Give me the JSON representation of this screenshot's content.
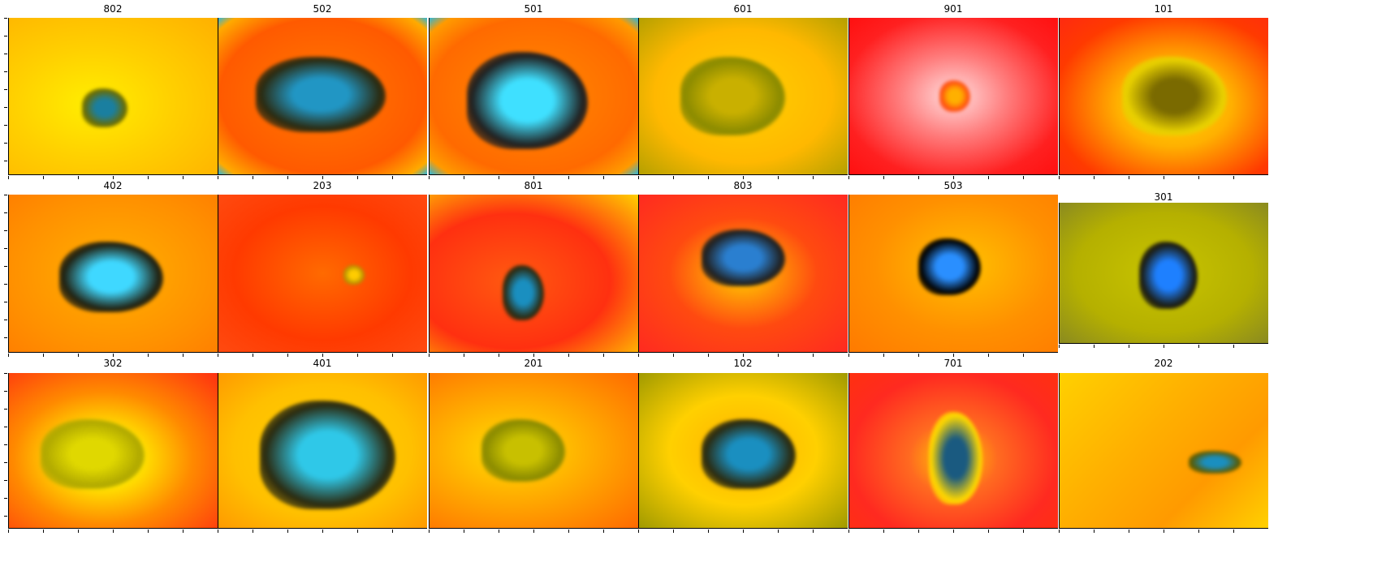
{
  "figure": {
    "panels": [
      {
        "title": "802",
        "bg": "radial-gradient(ellipse at 40% 55%, #ffee00 0%, #ffd000 45%, #ffb000 100%)",
        "lesion": {
          "color": "#6b6b00",
          "accent": "#1a7fa0"
        }
      },
      {
        "title": "502",
        "bg": "radial-gradient(ellipse at 50% 50%, #ff7a00 0%, #ff5a00 70%, #ffaa00 92%, #2fb6d8 100%)",
        "lesion": {
          "color": "#2a2a10",
          "accent": "#2196c4"
        }
      },
      {
        "title": "501",
        "bg": "radial-gradient(ellipse at 50% 50%, #ff8a00 0%, #ff6a00 70%, #ff9a00 90%, #2fb6d8 100%)",
        "lesion": {
          "color": "#202020",
          "accent": "#3fe0ff"
        }
      },
      {
        "title": "601",
        "bg": "radial-gradient(ellipse at 50% 50%, #ffd000 0%, #ffb800 60%, #b5a000 100%)",
        "lesion": {
          "color": "#8a8a00",
          "accent": "#c9b000"
        }
      },
      {
        "title": "901",
        "bg": "radial-gradient(ellipse at 50% 50%, #ffdede 0%, #ff8080 35%, #ff2020 75%, #ff1010 100%)",
        "lesion": {
          "color": "#ff4a10",
          "accent": "#ffb000"
        }
      },
      {
        "title": "101",
        "bg": "radial-gradient(ellipse at 55% 55%, #ffe000 0%, #ffb000 35%, #ff3a00 75%, #ff2a10 100%)",
        "lesion": {
          "color": "#e8d000",
          "accent": "#7a6a00"
        }
      },
      {
        "title": "402",
        "bg": "radial-gradient(ellipse at 50% 50%, #ffb000 0%, #ff9000 70%, #ff8000 100%)",
        "lesion": {
          "color": "#202010",
          "accent": "#3fd8ff"
        }
      },
      {
        "title": "203",
        "bg": "radial-gradient(ellipse at 50% 50%, #ff6a00 0%, #ff3a00 60%, #ff4a10 100%)",
        "lesion": {
          "color": "#b09000",
          "accent": "#ffcc00"
        }
      },
      {
        "title": "801",
        "bg": "radial-gradient(ellipse at 40% 55%, #ff5a10 0%, #ff3010 55%, #ffd000 100%)",
        "lesion": {
          "color": "#2a2a10",
          "accent": "#1a8fc0"
        }
      },
      {
        "title": "803",
        "bg": "radial-gradient(ellipse at 50% 50%, #ffd000 0%, #ff4a10 50%, #ff2a20 100%)",
        "lesion": {
          "color": "#202020",
          "accent": "#2a7fd0"
        }
      },
      {
        "title": "503",
        "bg": "radial-gradient(ellipse at 55% 45%, #ffc000 0%, #ff9000 55%, #ff7a00 100%)",
        "lesion": {
          "color": "#000000",
          "accent": "#2a8fff"
        }
      },
      {
        "title": "301",
        "bg": "radial-gradient(ellipse at 50% 50%, #c8c400 0%, #b5b000 60%, #8a8a20 100%)",
        "lesion": {
          "color": "#1a1a10",
          "accent": "#1e80ff"
        }
      },
      {
        "title": "302",
        "bg": "radial-gradient(ellipse at 45% 55%, #d8d000 0%, #ffe000 25%, #ff8a00 55%, #ff3010 100%)",
        "lesion": {
          "color": "#b0a800",
          "accent": "#e0d800"
        }
      },
      {
        "title": "401",
        "bg": "radial-gradient(ellipse at 50% 50%, #ffd000 0%, #ffc000 60%, #ff9a00 100%)",
        "lesion": {
          "color": "#2a2a10",
          "accent": "#2fc8e8"
        }
      },
      {
        "title": "201",
        "bg": "radial-gradient(ellipse at 40% 50%, #ffe000 0%, #ffb000 40%, #ff6a00 100%)",
        "lesion": {
          "color": "#8a8a00",
          "accent": "#c8c000"
        }
      },
      {
        "title": "102",
        "bg": "radial-gradient(ellipse at 50% 50%, #ffb000 0%, #ffd000 50%, #a09a00 100%)",
        "lesion": {
          "color": "#2a2a10",
          "accent": "#1a8fc0"
        }
      },
      {
        "title": "701",
        "bg": "radial-gradient(ellipse at 50% 55%, #ffd000 0%, #ff6a20 30%, #ff2a20 70%, #ff3010 100%)",
        "lesion": {
          "color": "#ffd800",
          "accent": "#1a5a80"
        }
      },
      {
        "title": "202",
        "bg": "linear-gradient(135deg, #ffd000 0%, #ffb000 40%, #ff9a00 70%, #ffd000 100%)",
        "lesion": {
          "color": "#5a5a00",
          "accent": "#1a8fc0"
        }
      }
    ]
  }
}
